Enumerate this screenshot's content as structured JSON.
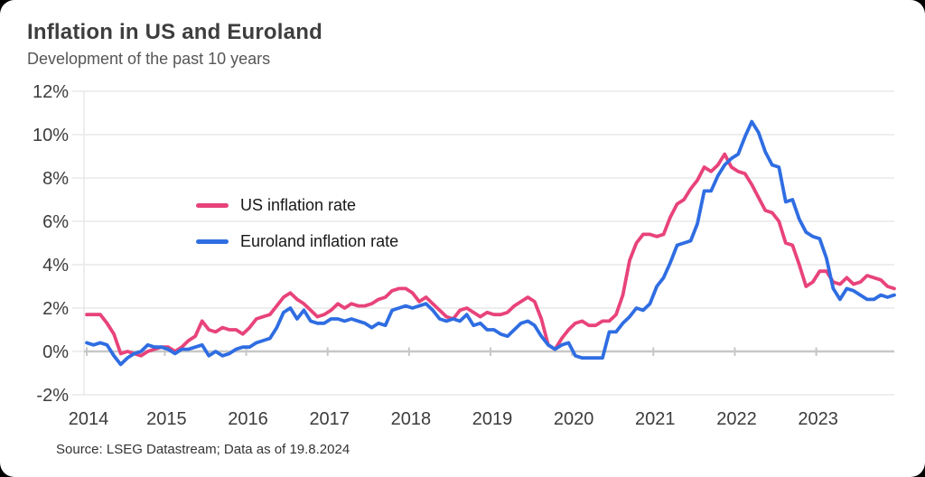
{
  "card": {
    "title": "Inflation in US and Euroland",
    "subtitle": "Development of the past 10 years",
    "source": "Source: LSEG Datastream; Data as of 19.8.2024"
  },
  "colors": {
    "us_line": "#e8437a",
    "euroland_line": "#2f6de2",
    "grid": "#e9e9e9",
    "zero_line": "#c7c7c7",
    "axis_text": "#3c3c3c"
  },
  "chart_data": {
    "type": "line",
    "title": "Inflation in US and Euroland",
    "subtitle": "Development of the past 10 years",
    "x_unit": "month",
    "x_start": "2014-08",
    "x_end": "2024-07",
    "ylim": [
      -2,
      12
    ],
    "y_ticks": [
      12,
      10,
      8,
      6,
      4,
      2,
      0,
      -2
    ],
    "y_tick_suffix": "%",
    "grid": true,
    "legend_position": "inside-top-left",
    "x_ticks": [
      {
        "label": "2014",
        "month": 0
      },
      {
        "label": "2015",
        "month": 11.5
      },
      {
        "label": "2016",
        "month": 23.5
      },
      {
        "label": "2017",
        "month": 35.5
      },
      {
        "label": "2018",
        "month": 47.5
      },
      {
        "label": "2019",
        "month": 59.5
      },
      {
        "label": "2020",
        "month": 71.5
      },
      {
        "label": "2021",
        "month": 83.5
      },
      {
        "label": "2022",
        "month": 95.5
      },
      {
        "label": "2023",
        "month": 107.5
      }
    ],
    "series": [
      {
        "name": "US inflation rate",
        "color": "#e8437a",
        "values": [
          1.7,
          1.7,
          1.7,
          1.3,
          0.8,
          -0.1,
          0.0,
          -0.1,
          -0.2,
          0.0,
          0.1,
          0.2,
          0.2,
          0.0,
          0.2,
          0.5,
          0.7,
          1.4,
          1.0,
          0.9,
          1.1,
          1.0,
          1.0,
          0.8,
          1.1,
          1.5,
          1.6,
          1.7,
          2.1,
          2.5,
          2.7,
          2.4,
          2.2,
          1.9,
          1.6,
          1.7,
          1.9,
          2.2,
          2.0,
          2.2,
          2.1,
          2.1,
          2.2,
          2.4,
          2.5,
          2.8,
          2.9,
          2.9,
          2.7,
          2.3,
          2.5,
          2.2,
          1.9,
          1.6,
          1.5,
          1.9,
          2.0,
          1.8,
          1.6,
          1.8,
          1.7,
          1.7,
          1.8,
          2.1,
          2.3,
          2.5,
          2.3,
          1.5,
          0.3,
          0.1,
          0.6,
          1.0,
          1.3,
          1.4,
          1.2,
          1.2,
          1.4,
          1.4,
          1.7,
          2.6,
          4.2,
          5.0,
          5.4,
          5.4,
          5.3,
          5.4,
          6.2,
          6.8,
          7.0,
          7.5,
          7.9,
          8.5,
          8.3,
          8.6,
          9.1,
          8.5,
          8.3,
          8.2,
          7.7,
          7.1,
          6.5,
          6.4,
          6.0,
          5.0,
          4.9,
          4.0,
          3.0,
          3.2,
          3.7,
          3.7,
          3.2,
          3.1,
          3.4,
          3.1,
          3.2,
          3.5,
          3.4,
          3.3,
          3.0,
          2.9
        ]
      },
      {
        "name": "Euroland inflation rate",
        "color": "#2f6de2",
        "values": [
          0.4,
          0.3,
          0.4,
          0.3,
          -0.2,
          -0.6,
          -0.3,
          -0.1,
          0.0,
          0.3,
          0.2,
          0.2,
          0.1,
          -0.1,
          0.1,
          0.1,
          0.2,
          0.3,
          -0.2,
          0.0,
          -0.2,
          -0.1,
          0.1,
          0.2,
          0.2,
          0.4,
          0.5,
          0.6,
          1.1,
          1.8,
          2.0,
          1.5,
          1.9,
          1.4,
          1.3,
          1.3,
          1.5,
          1.5,
          1.4,
          1.5,
          1.4,
          1.3,
          1.1,
          1.3,
          1.2,
          1.9,
          2.0,
          2.1,
          2.0,
          2.1,
          2.2,
          1.9,
          1.5,
          1.4,
          1.5,
          1.4,
          1.7,
          1.2,
          1.3,
          1.0,
          1.0,
          0.8,
          0.7,
          1.0,
          1.3,
          1.4,
          1.2,
          0.7,
          0.3,
          0.1,
          0.3,
          0.4,
          -0.2,
          -0.3,
          -0.3,
          -0.3,
          -0.3,
          0.9,
          0.9,
          1.3,
          1.6,
          2.0,
          1.9,
          2.2,
          3.0,
          3.4,
          4.1,
          4.9,
          5.0,
          5.1,
          5.9,
          7.4,
          7.4,
          8.1,
          8.6,
          8.9,
          9.1,
          9.9,
          10.6,
          10.1,
          9.2,
          8.6,
          8.5,
          6.9,
          7.0,
          6.1,
          5.5,
          5.3,
          5.2,
          4.3,
          2.9,
          2.4,
          2.9,
          2.8,
          2.6,
          2.4,
          2.4,
          2.6,
          2.5,
          2.6
        ]
      }
    ]
  }
}
